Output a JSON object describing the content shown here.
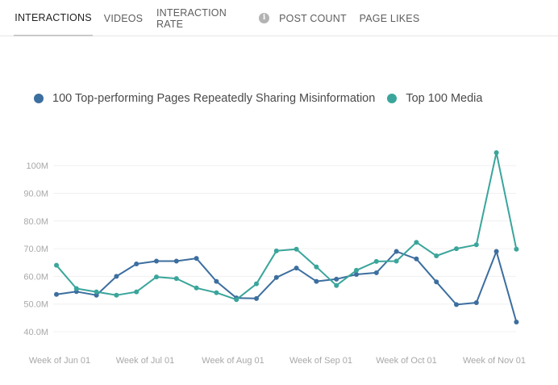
{
  "tabs": [
    {
      "label": "INTERACTIONS",
      "active": true
    },
    {
      "label": "VIDEOS",
      "active": false
    },
    {
      "label": "INTERACTION RATE",
      "active": false,
      "info_icon": "info-icon"
    },
    {
      "label": "POST COUNT",
      "active": false
    },
    {
      "label": "PAGE LIKES",
      "active": false
    }
  ],
  "chart_data": {
    "type": "line",
    "title": "",
    "xlabel": "",
    "ylabel": "",
    "ylim": [
      35,
      105
    ],
    "y_ticks": [
      "40.0M",
      "50.0M",
      "60.0M",
      "70.0M",
      "80.0M",
      "90.0M",
      "100M"
    ],
    "x_tick_labels": [
      "Week of Jun 01",
      "Week of Jul 01",
      "Week of Aug 01",
      "Week of Sep 01",
      "Week of Oct 01",
      "Week of Nov 01"
    ],
    "grid": true,
    "legend_position": "top-left",
    "series": [
      {
        "name": "100 Top-performing Pages Repeatedly Sharing Misinformation",
        "color": "#3c6e9f",
        "values": [
          53.5,
          54.5,
          53.2,
          60.0,
          64.5,
          65.5,
          65.5,
          66.5,
          58.2,
          52.2,
          52.0,
          59.6,
          63.0,
          58.2,
          59.0,
          60.7,
          61.3,
          69.0,
          66.3,
          58.0,
          49.8,
          50.5,
          69.0,
          43.5
        ]
      },
      {
        "name": "Top 100 Media",
        "color": "#3aa59b",
        "values": [
          64.0,
          55.6,
          54.4,
          53.2,
          54.4,
          59.8,
          59.2,
          55.8,
          54.1,
          51.6,
          57.3,
          69.2,
          69.8,
          63.4,
          56.7,
          62.2,
          65.4,
          65.5,
          72.3,
          67.4,
          70.0,
          71.4,
          104.7,
          69.8
        ]
      }
    ]
  }
}
